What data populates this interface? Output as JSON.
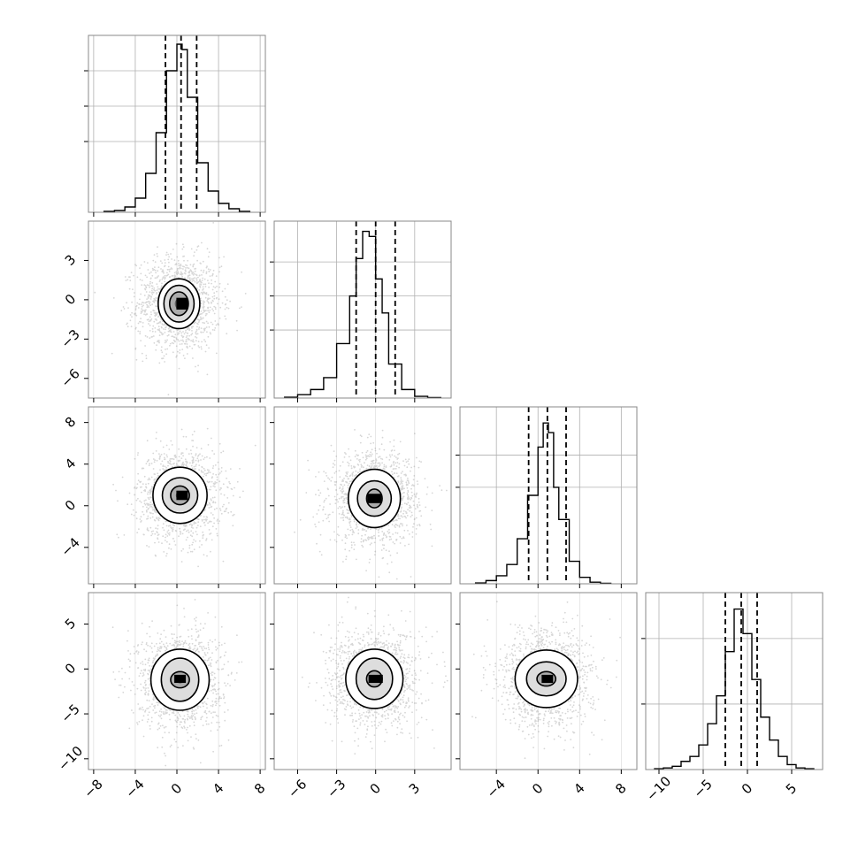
{
  "chart_data": {
    "type": "corner",
    "n_params": 4,
    "grid": true,
    "colors": {
      "line": "#000000",
      "grid": "#b0b0b0",
      "points": "#8c8c8c",
      "axes_bg": "#ffffff"
    },
    "columns": [
      {
        "xlim": [
          -8.5,
          8.5
        ],
        "xticks": [
          -8,
          -4,
          0,
          4,
          8
        ],
        "xtick_labels": [
          "−8",
          "−4",
          "0",
          "4",
          "8"
        ]
      },
      {
        "xlim": [
          -7.8,
          5.8
        ],
        "xticks": [
          -6,
          -3,
          0,
          3
        ],
        "xtick_labels": [
          "−6",
          "−3",
          "0",
          "3"
        ]
      },
      {
        "xlim": [
          -7.5,
          9.5
        ],
        "xticks": [
          -4,
          0,
          4,
          8
        ],
        "xtick_labels": [
          "−4",
          "0",
          "4",
          "8"
        ]
      },
      {
        "xlim": [
          -11.5,
          8.5
        ],
        "xticks": [
          -10,
          -5,
          0,
          5
        ],
        "xtick_labels": [
          "−10",
          "−5",
          "0",
          "5"
        ]
      }
    ],
    "rows": [
      {
        "row": 1,
        "ylim": [
          -7.5,
          6.0
        ],
        "yticks": [
          3,
          0,
          -3,
          -6
        ],
        "ytick_labels": [
          "3",
          "0",
          "−3",
          "−6"
        ]
      },
      {
        "row": 2,
        "ylim": [
          -7.5,
          9.5
        ],
        "yticks": [
          8,
          4,
          0,
          -4
        ],
        "ytick_labels": [
          "8",
          "4",
          "0",
          "−4"
        ]
      },
      {
        "row": 3,
        "ylim": [
          -11.2,
          8.5
        ],
        "yticks": [
          5,
          0,
          -5,
          -10
        ],
        "ytick_labels": [
          "5",
          "0",
          "−5",
          "−10"
        ]
      }
    ],
    "histograms": [
      {
        "param": 0,
        "bin_edges": [
          -7,
          -6,
          -5,
          -4,
          -3,
          -2,
          -1,
          0,
          0.5,
          1,
          2,
          3,
          4,
          5,
          6,
          7
        ],
        "counts": [
          0.5,
          1,
          3,
          8,
          22,
          45,
          80,
          95,
          92,
          65,
          28,
          12,
          5,
          2,
          0.5
        ],
        "quantiles": [
          -1.1,
          0.4,
          1.9
        ],
        "ymax": 100,
        "ygrid": [
          40,
          60,
          80
        ]
      },
      {
        "param": 1,
        "bin_edges": [
          -7,
          -6,
          -5,
          -4,
          -3,
          -2,
          -1.5,
          -1,
          -0.5,
          0,
          0.5,
          1,
          2,
          3,
          4,
          5
        ],
        "counts": [
          0.5,
          2,
          5,
          12,
          32,
          60,
          82,
          98,
          95,
          70,
          50,
          20,
          5,
          1,
          0.3
        ],
        "quantiles": [
          -1.5,
          0.0,
          1.5
        ],
        "ymax": 104,
        "ygrid": [
          40,
          60,
          80
        ]
      },
      {
        "param": 2,
        "bin_edges": [
          -6,
          -5,
          -4,
          -3,
          -2,
          -1,
          0,
          0.5,
          1,
          1.5,
          2,
          3,
          4,
          5,
          6,
          7
        ],
        "counts": [
          0.5,
          2,
          5,
          12,
          28,
          55,
          85,
          100,
          94,
          60,
          40,
          14,
          4,
          1,
          0.3
        ],
        "quantiles": [
          -0.9,
          0.9,
          2.7
        ],
        "ymax": 110,
        "ygrid": [
          60,
          80
        ]
      },
      {
        "param": 3,
        "bin_edges": [
          -10.5,
          -9.5,
          -8.5,
          -7.5,
          -6.5,
          -5.5,
          -4.5,
          -3.5,
          -2.5,
          -1.5,
          -0.5,
          0.5,
          1.5,
          2.5,
          3.5,
          4.5,
          5.5,
          6.5,
          7.5
        ],
        "counts": [
          0.5,
          1,
          2,
          5,
          8,
          15,
          28,
          45,
          72,
          98,
          83,
          55,
          32,
          18,
          8,
          3,
          1,
          0.5
        ],
        "quantiles": [
          -2.5,
          -0.7,
          1.1
        ],
        "ymax": 108,
        "ygrid": [
          40,
          80
        ]
      }
    ],
    "panels_2d": [
      {
        "row": 1,
        "col": 0,
        "center": [
          0.2,
          -0.3
        ],
        "sigma": [
          2.0,
          1.8
        ],
        "peak": [
          0.5,
          -0.3
        ],
        "levels": [
          [
            0.9,
            0.9
          ],
          [
            1.45,
            1.4
          ],
          [
            2.0,
            1.9
          ]
        ],
        "sigma_levels": [
          0.5,
          1.0,
          1.5
        ]
      },
      {
        "row": 2,
        "col": 0,
        "center": [
          0.3,
          1.0
        ],
        "sigma": [
          2.0,
          2.2
        ],
        "peak": [
          0.5,
          1.0
        ],
        "levels": [
          [
            0.9,
            0.9
          ],
          [
            1.7,
            1.7
          ],
          [
            2.6,
            2.7
          ]
        ],
        "sigma_levels": [
          0.5,
          1.0,
          1.5
        ]
      },
      {
        "row": 2,
        "col": 1,
        "center": [
          -0.1,
          0.7
        ],
        "sigma": [
          1.7,
          2.2
        ],
        "peak": [
          -0.1,
          0.7
        ],
        "levels": [
          [
            0.6,
            0.9
          ],
          [
            1.3,
            1.7
          ],
          [
            2.0,
            2.8
          ]
        ],
        "sigma_levels": [
          0.5,
          1.0,
          1.5
        ]
      },
      {
        "row": 3,
        "col": 0,
        "center": [
          0.3,
          -1.2
        ],
        "sigma": [
          2.0,
          2.7
        ],
        "peak": [
          0.3,
          -1.1
        ],
        "levels": [
          [
            0.9,
            0.9
          ],
          [
            1.8,
            2.4
          ],
          [
            2.8,
            3.4
          ]
        ],
        "sigma_levels": [
          0.5,
          1.0,
          1.5
        ]
      },
      {
        "row": 3,
        "col": 1,
        "center": [
          -0.1,
          -1.1
        ],
        "sigma": [
          1.7,
          2.7
        ],
        "peak": [
          0.0,
          -1.1
        ],
        "levels": [
          [
            0.6,
            0.9
          ],
          [
            1.4,
            2.3
          ],
          [
            2.2,
            3.3
          ]
        ],
        "sigma_levels": [
          0.5,
          1.0,
          1.5
        ]
      },
      {
        "row": 3,
        "col": 2,
        "center": [
          0.8,
          -1.1
        ],
        "sigma": [
          2.2,
          2.7
        ],
        "peak": [
          0.9,
          -1.1
        ],
        "levels": [
          [
            0.9,
            0.8
          ],
          [
            1.9,
            1.9
          ],
          [
            3.0,
            3.2
          ]
        ],
        "sigma_levels": [
          0.5,
          1.0,
          1.5
        ]
      }
    ]
  }
}
